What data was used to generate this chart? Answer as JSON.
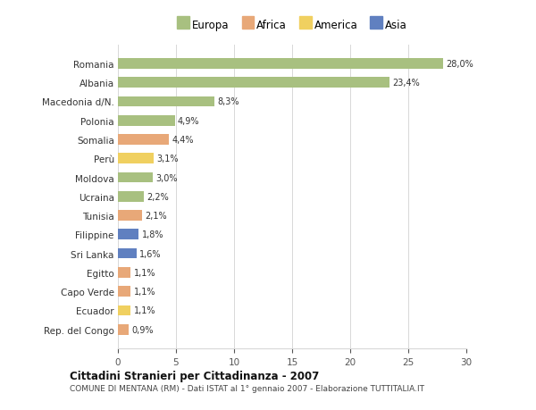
{
  "countries": [
    "Romania",
    "Albania",
    "Macedonia d/N.",
    "Polonia",
    "Somalia",
    "Perù",
    "Moldova",
    "Ucraina",
    "Tunisia",
    "Filippine",
    "Sri Lanka",
    "Egitto",
    "Capo Verde",
    "Ecuador",
    "Rep. del Congo"
  ],
  "values": [
    28.0,
    23.4,
    8.3,
    4.9,
    4.4,
    3.1,
    3.0,
    2.2,
    2.1,
    1.8,
    1.6,
    1.1,
    1.1,
    1.1,
    0.9
  ],
  "labels": [
    "28,0%",
    "23,4%",
    "8,3%",
    "4,9%",
    "4,4%",
    "3,1%",
    "3,0%",
    "2,2%",
    "2,1%",
    "1,8%",
    "1,6%",
    "1,1%",
    "1,1%",
    "1,1%",
    "0,9%"
  ],
  "continents": [
    "Europa",
    "Europa",
    "Europa",
    "Europa",
    "Africa",
    "America",
    "Europa",
    "Europa",
    "Africa",
    "Asia",
    "Asia",
    "Africa",
    "Africa",
    "America",
    "Africa"
  ],
  "continent_colors": {
    "Europa": "#a8c080",
    "Africa": "#e8a878",
    "America": "#f0d060",
    "Asia": "#6080c0"
  },
  "legend_order": [
    "Europa",
    "Africa",
    "America",
    "Asia"
  ],
  "title": "Cittadini Stranieri per Cittadinanza - 2007",
  "subtitle": "COMUNE DI MENTANA (RM) - Dati ISTAT al 1° gennaio 2007 - Elaborazione TUTTITALIA.IT",
  "xlim": [
    0,
    30
  ],
  "xticks": [
    0,
    5,
    10,
    15,
    20,
    25,
    30
  ],
  "bg_color": "#ffffff",
  "grid_color": "#d8d8d8",
  "bar_height": 0.55
}
